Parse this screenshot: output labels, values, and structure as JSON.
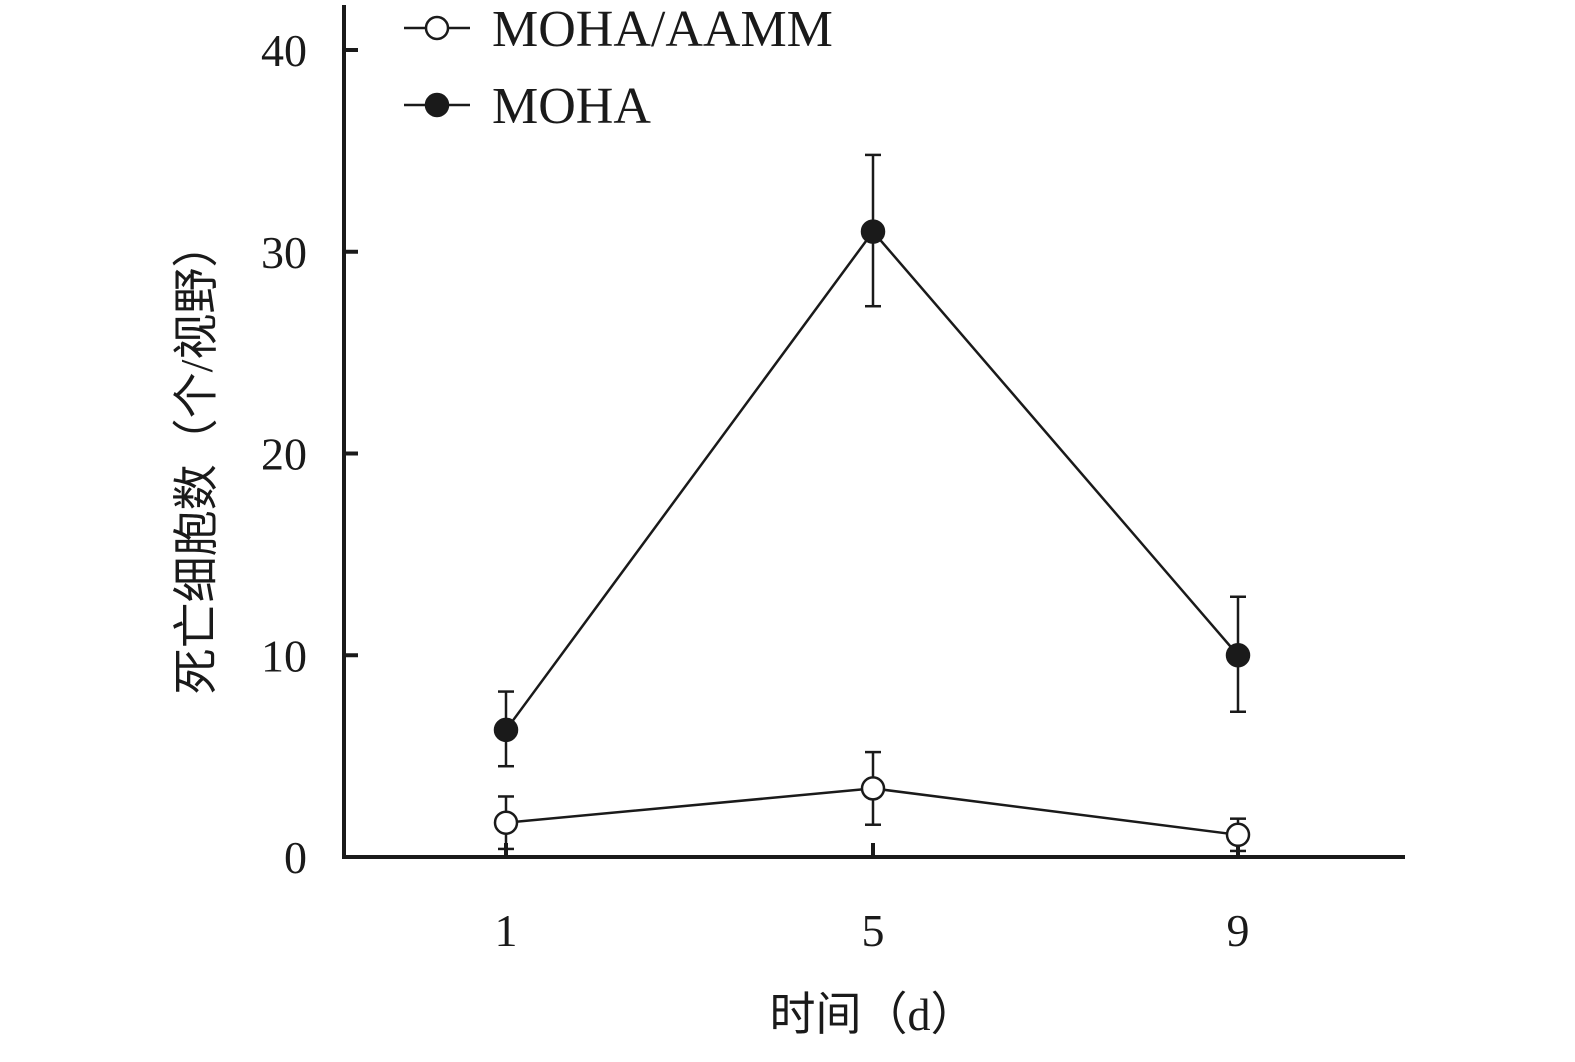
{
  "chart_data": {
    "type": "line",
    "xlabel": "时间（d）",
    "ylabel": "死亡细胞数（个/视野）",
    "categories": [
      "1",
      "5",
      "9"
    ],
    "x": [
      1,
      5,
      9
    ],
    "xticks": [
      "1",
      "5",
      "9"
    ],
    "ylim": [
      0,
      40
    ],
    "yticks": [
      "0",
      "10",
      "20",
      "30",
      "40"
    ],
    "grid": false,
    "legend_position": "top-left",
    "series": [
      {
        "name": "MOHA/AAMM",
        "marker": "open-circle",
        "values": [
          1.7,
          3.4,
          1.1
        ],
        "err_upper": [
          3.0,
          5.2,
          1.9
        ],
        "err_lower": [
          0.4,
          1.6,
          0.3
        ]
      },
      {
        "name": "MOHA",
        "marker": "filled-circle",
        "values": [
          6.3,
          31.0,
          10.0
        ],
        "err_upper": [
          8.2,
          34.8,
          12.9
        ],
        "err_lower": [
          4.5,
          27.3,
          7.2
        ]
      }
    ],
    "colors": {
      "line": "#1a1a1a",
      "open_fill": "#ffffff",
      "filled_fill": "#1a1a1a"
    }
  }
}
